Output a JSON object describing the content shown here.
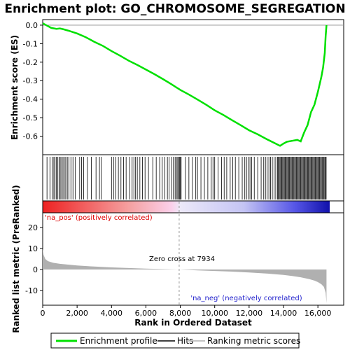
{
  "colors": {
    "es_line": "#00e000",
    "hits": "#000000",
    "metric_fill": "#b0b0b0",
    "pos_label": "#dd0000",
    "neg_label": "#2222cc"
  },
  "chart_data": {
    "type": "line",
    "title": "Enrichment plot: GO_CHROMOSOME_SEGREGATION",
    "xlabel": "Rank in Ordered Dataset",
    "xlim": [
      0,
      17500
    ],
    "x_ticks": [
      "0",
      "2,000",
      "4,000",
      "6,000",
      "8,000",
      "10,000",
      "12,000",
      "14,000",
      "16,000"
    ],
    "es_panel": {
      "ylabel": "Enrichment score (ES)",
      "ylim": [
        -0.7,
        0.03
      ],
      "y_ticks": [
        "0.0",
        "-0.1",
        "-0.2",
        "-0.3",
        "-0.4",
        "-0.5",
        "-0.6"
      ],
      "series": [
        {
          "name": "Enrichment profile",
          "x": [
            0,
            200,
            500,
            800,
            1000,
            1200,
            1500,
            2000,
            2500,
            3000,
            3500,
            4000,
            4500,
            5000,
            5500,
            6000,
            6500,
            7000,
            7500,
            8000,
            8500,
            9000,
            9500,
            10000,
            10500,
            11000,
            11500,
            12000,
            12500,
            13000,
            13500,
            13800,
            14000,
            14200,
            14500,
            14800,
            15000,
            15200,
            15400,
            15600,
            15800,
            16000,
            16100,
            16200,
            16300,
            16400,
            16450,
            16500
          ],
          "y": [
            0.01,
            0.0,
            -0.015,
            -0.02,
            -0.018,
            -0.022,
            -0.03,
            -0.045,
            -0.065,
            -0.09,
            -0.112,
            -0.14,
            -0.165,
            -0.192,
            -0.215,
            -0.24,
            -0.265,
            -0.292,
            -0.32,
            -0.35,
            -0.375,
            -0.402,
            -0.43,
            -0.46,
            -0.485,
            -0.513,
            -0.54,
            -0.568,
            -0.59,
            -0.615,
            -0.638,
            -0.652,
            -0.64,
            -0.63,
            -0.625,
            -0.62,
            -0.628,
            -0.58,
            -0.54,
            -0.47,
            -0.43,
            -0.36,
            -0.32,
            -0.28,
            -0.23,
            -0.15,
            -0.06,
            0.0
          ]
        }
      ]
    },
    "hits_panel": {
      "series_name": "Hits",
      "hit_ranks": [
        250,
        420,
        560,
        650,
        720,
        800,
        880,
        950,
        1020,
        1100,
        1180,
        1260,
        1340,
        1430,
        1520,
        1640,
        1760,
        1900,
        2150,
        2260,
        2380,
        2600,
        2830,
        3100,
        3300,
        3400,
        4000,
        4120,
        4250,
        4400,
        4550,
        4700,
        4850,
        5050,
        5200,
        5300,
        5400,
        5500,
        5650,
        5800,
        5950,
        6150,
        6400,
        6600,
        6800,
        6950,
        7100,
        7250,
        7350,
        7500,
        7600,
        7700,
        7780,
        7850,
        7900,
        7950,
        8000,
        8050,
        8300,
        8500,
        8700,
        8900,
        9000,
        9200,
        9400,
        9600,
        9800,
        9900,
        10000,
        10200,
        10400,
        10550,
        10700,
        10900,
        11050,
        11200,
        11400,
        11600,
        11750,
        11850,
        11950,
        12050,
        12150,
        12300,
        12500,
        12700,
        12850,
        12950,
        13050,
        13150,
        13250,
        13350,
        13450,
        13550,
        13650,
        13700,
        13750,
        13800,
        13850,
        13900,
        13950,
        14000,
        14050,
        14100,
        14150,
        14200,
        14250,
        14300,
        14350,
        14400,
        14450,
        14500,
        14550,
        14600,
        14650,
        14700,
        14750,
        14800,
        14850,
        14900,
        14950,
        15000,
        15050,
        15100,
        15150,
        15200,
        15250,
        15300,
        15350,
        15400,
        15450,
        15500,
        15550,
        15600,
        15650,
        15700,
        15750,
        15800,
        15850,
        15900,
        15950,
        16000,
        16050,
        16100,
        16150,
        16200,
        16250,
        16300,
        16350,
        16400,
        16450,
        16480
      ]
    },
    "metric_panel": {
      "series_name": "Ranking metric scores",
      "ylabel": "Ranked list metric (PreRanked)",
      "ylim": [
        -17,
        27
      ],
      "y_ticks": [
        "20",
        "10",
        "0",
        "-10"
      ],
      "x": [
        0,
        50,
        150,
        300,
        600,
        1000,
        2000,
        3000,
        4000,
        5000,
        6000,
        7000,
        7934,
        9000,
        10000,
        11000,
        12000,
        13000,
        14000,
        14500,
        15000,
        15500,
        15800,
        16000,
        16200,
        16350,
        16450,
        16500
      ],
      "y": [
        10,
        7,
        5,
        4,
        3.2,
        2.7,
        1.9,
        1.4,
        1.0,
        0.7,
        0.4,
        0.2,
        0,
        -0.4,
        -0.7,
        -1.0,
        -1.4,
        -1.9,
        -2.6,
        -3.1,
        -3.7,
        -4.6,
        -5.3,
        -6.0,
        -7.0,
        -8.3,
        -11,
        -16
      ],
      "zero_cross_label": "Zero cross at 7934",
      "zero_cross_rank": 7934,
      "pos_label": "'na_pos' (positively correlated)",
      "neg_label": "'na_neg' (negatively correlated)"
    },
    "legend": {
      "placement": "bottom",
      "entries": [
        "Enrichment profile",
        "Hits",
        "Ranking metric scores"
      ]
    }
  }
}
